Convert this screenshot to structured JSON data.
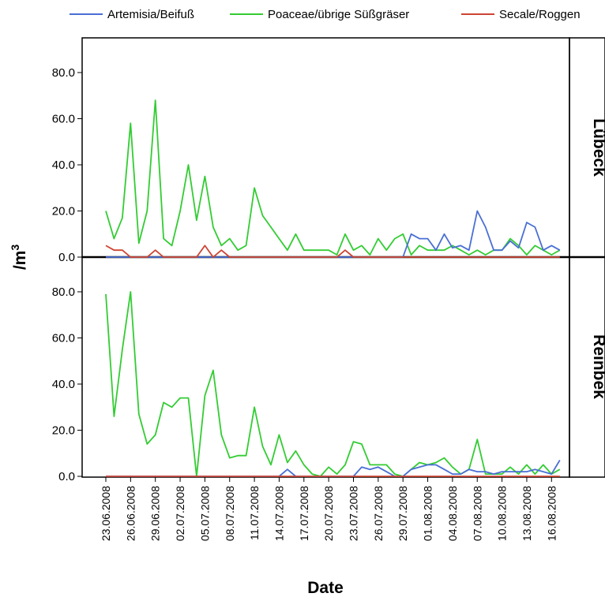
{
  "chart_data": {
    "type": "line",
    "xlabel": "Date",
    "ylabel_main": "/m",
    "ylabel_sup": "3",
    "ylim": [
      0,
      92
    ],
    "yticks": [
      "0.0",
      "20.0",
      "40.0",
      "60.0",
      "80.0"
    ],
    "ytick_values": [
      0,
      20,
      40,
      60,
      80
    ],
    "x_start": "2008-06-23",
    "x_end": "2008-08-17",
    "x_ticks": [
      "23.06.2008",
      "26.06.2008",
      "29.06.2008",
      "02.07.2008",
      "05.07.2008",
      "08.07.2008",
      "11.07.2008",
      "14.07.2008",
      "17.07.2008",
      "20.07.2008",
      "23.07.2008",
      "26.07.2008",
      "29.07.2008",
      "01.08.2008",
      "04.08.2008",
      "07.08.2008",
      "10.08.2008",
      "13.08.2008",
      "16.08.2008"
    ],
    "legend": [
      {
        "name": "Artemisia/Beifuß",
        "color": "#4a6fd4"
      },
      {
        "name": "Poaceae/übrige Süßgräser",
        "color": "#33cc33"
      },
      {
        "name": "Secale/Roggen",
        "color": "#cc4433"
      }
    ],
    "legend_placement": "top",
    "panels": [
      {
        "label": "Lübeck",
        "series": [
          {
            "name": "Artemisia/Beifuß",
            "color": "#4a6fd4",
            "points": [
              [
                "2008-06-23",
                0
              ],
              [
                "2008-07-29",
                0
              ],
              [
                "2008-07-30",
                10
              ],
              [
                "2008-07-31",
                8
              ],
              [
                "2008-08-01",
                8
              ],
              [
                "2008-08-02",
                3
              ],
              [
                "2008-08-03",
                10
              ],
              [
                "2008-08-04",
                4
              ],
              [
                "2008-08-05",
                5
              ],
              [
                "2008-08-06",
                3
              ],
              [
                "2008-08-07",
                20
              ],
              [
                "2008-08-08",
                13
              ],
              [
                "2008-08-09",
                3
              ],
              [
                "2008-08-10",
                3
              ],
              [
                "2008-08-11",
                7
              ],
              [
                "2008-08-12",
                4
              ],
              [
                "2008-08-13",
                15
              ],
              [
                "2008-08-14",
                13
              ],
              [
                "2008-08-15",
                3
              ],
              [
                "2008-08-16",
                5
              ],
              [
                "2008-08-17",
                3
              ]
            ]
          },
          {
            "name": "Poaceae/übrige Süßgräser",
            "color": "#33cc33",
            "points": [
              [
                "2008-06-23",
                20
              ],
              [
                "2008-06-24",
                8
              ],
              [
                "2008-06-25",
                17
              ],
              [
                "2008-06-26",
                58
              ],
              [
                "2008-06-27",
                6
              ],
              [
                "2008-06-28",
                20
              ],
              [
                "2008-06-29",
                68
              ],
              [
                "2008-06-30",
                8
              ],
              [
                "2008-07-01",
                5
              ],
              [
                "2008-07-02",
                20
              ],
              [
                "2008-07-03",
                40
              ],
              [
                "2008-07-04",
                16
              ],
              [
                "2008-07-05",
                35
              ],
              [
                "2008-07-06",
                13
              ],
              [
                "2008-07-07",
                5
              ],
              [
                "2008-07-08",
                8
              ],
              [
                "2008-07-09",
                3
              ],
              [
                "2008-07-10",
                5
              ],
              [
                "2008-07-11",
                30
              ],
              [
                "2008-07-12",
                18
              ],
              [
                "2008-07-13",
                13
              ],
              [
                "2008-07-14",
                8
              ],
              [
                "2008-07-15",
                3
              ],
              [
                "2008-07-16",
                10
              ],
              [
                "2008-07-17",
                3
              ],
              [
                "2008-07-18",
                3
              ],
              [
                "2008-07-19",
                3
              ],
              [
                "2008-07-20",
                3
              ],
              [
                "2008-07-21",
                1
              ],
              [
                "2008-07-22",
                10
              ],
              [
                "2008-07-23",
                3
              ],
              [
                "2008-07-24",
                5
              ],
              [
                "2008-07-25",
                1
              ],
              [
                "2008-07-26",
                8
              ],
              [
                "2008-07-27",
                3
              ],
              [
                "2008-07-28",
                8
              ],
              [
                "2008-07-29",
                10
              ],
              [
                "2008-07-30",
                1
              ],
              [
                "2008-07-31",
                5
              ],
              [
                "2008-08-01",
                3
              ],
              [
                "2008-08-02",
                3
              ],
              [
                "2008-08-03",
                3
              ],
              [
                "2008-08-04",
                5
              ],
              [
                "2008-08-05",
                3
              ],
              [
                "2008-08-06",
                1
              ],
              [
                "2008-08-07",
                3
              ],
              [
                "2008-08-08",
                1
              ],
              [
                "2008-08-09",
                3
              ],
              [
                "2008-08-10",
                3
              ],
              [
                "2008-08-11",
                8
              ],
              [
                "2008-08-12",
                5
              ],
              [
                "2008-08-13",
                1
              ],
              [
                "2008-08-14",
                5
              ],
              [
                "2008-08-15",
                3
              ],
              [
                "2008-08-16",
                1
              ],
              [
                "2008-08-17",
                3
              ]
            ]
          },
          {
            "name": "Secale/Roggen",
            "color": "#cc4433",
            "points": [
              [
                "2008-06-23",
                5
              ],
              [
                "2008-06-24",
                3
              ],
              [
                "2008-06-25",
                3
              ],
              [
                "2008-06-26",
                0
              ],
              [
                "2008-06-27",
                0
              ],
              [
                "2008-06-28",
                0
              ],
              [
                "2008-06-29",
                3
              ],
              [
                "2008-06-30",
                0
              ],
              [
                "2008-07-01",
                0
              ],
              [
                "2008-07-02",
                0
              ],
              [
                "2008-07-03",
                0
              ],
              [
                "2008-07-04",
                0
              ],
              [
                "2008-07-05",
                5
              ],
              [
                "2008-07-06",
                0
              ],
              [
                "2008-07-07",
                3
              ],
              [
                "2008-07-08",
                0
              ],
              [
                "2008-07-09",
                0
              ],
              [
                "2008-07-21",
                0
              ],
              [
                "2008-07-22",
                3
              ],
              [
                "2008-07-23",
                0
              ],
              [
                "2008-08-17",
                0
              ]
            ]
          }
        ]
      },
      {
        "label": "Reinbek",
        "series": [
          {
            "name": "Artemisia/Beifuß",
            "color": "#4a6fd4",
            "points": [
              [
                "2008-06-23",
                0
              ],
              [
                "2008-07-13",
                0
              ],
              [
                "2008-07-14",
                0
              ],
              [
                "2008-07-15",
                3
              ],
              [
                "2008-07-16",
                0
              ],
              [
                "2008-07-23",
                0
              ],
              [
                "2008-07-24",
                4
              ],
              [
                "2008-07-25",
                3
              ],
              [
                "2008-07-26",
                4
              ],
              [
                "2008-07-27",
                2
              ],
              [
                "2008-07-28",
                0
              ],
              [
                "2008-07-29",
                0
              ],
              [
                "2008-07-30",
                3
              ],
              [
                "2008-07-31",
                4
              ],
              [
                "2008-08-01",
                5
              ],
              [
                "2008-08-02",
                5
              ],
              [
                "2008-08-03",
                3
              ],
              [
                "2008-08-04",
                1
              ],
              [
                "2008-08-05",
                1
              ],
              [
                "2008-08-06",
                3
              ],
              [
                "2008-08-07",
                2
              ],
              [
                "2008-08-08",
                2
              ],
              [
                "2008-08-09",
                1
              ],
              [
                "2008-08-10",
                2
              ],
              [
                "2008-08-11",
                2
              ],
              [
                "2008-08-12",
                2
              ],
              [
                "2008-08-13",
                2
              ],
              [
                "2008-08-14",
                3
              ],
              [
                "2008-08-15",
                2
              ],
              [
                "2008-08-16",
                1
              ],
              [
                "2008-08-17",
                7
              ]
            ]
          },
          {
            "name": "Poaceae/übrige Süßgräser",
            "color": "#33cc33",
            "points": [
              [
                "2008-06-23",
                79
              ],
              [
                "2008-06-24",
                26
              ],
              [
                "2008-06-25",
                55
              ],
              [
                "2008-06-26",
                80
              ],
              [
                "2008-06-27",
                27
              ],
              [
                "2008-06-28",
                14
              ],
              [
                "2008-06-29",
                18
              ],
              [
                "2008-06-30",
                32
              ],
              [
                "2008-07-01",
                30
              ],
              [
                "2008-07-02",
                34
              ],
              [
                "2008-07-03",
                34
              ],
              [
                "2008-07-04",
                0
              ],
              [
                "2008-07-05",
                35
              ],
              [
                "2008-07-06",
                46
              ],
              [
                "2008-07-07",
                18
              ],
              [
                "2008-07-08",
                8
              ],
              [
                "2008-07-09",
                9
              ],
              [
                "2008-07-10",
                9
              ],
              [
                "2008-07-11",
                30
              ],
              [
                "2008-07-12",
                13
              ],
              [
                "2008-07-13",
                5
              ],
              [
                "2008-07-14",
                18
              ],
              [
                "2008-07-15",
                6
              ],
              [
                "2008-07-16",
                11
              ],
              [
                "2008-07-17",
                5
              ],
              [
                "2008-07-18",
                1
              ],
              [
                "2008-07-19",
                0
              ],
              [
                "2008-07-20",
                4
              ],
              [
                "2008-07-21",
                1
              ],
              [
                "2008-07-22",
                5
              ],
              [
                "2008-07-23",
                15
              ],
              [
                "2008-07-24",
                14
              ],
              [
                "2008-07-25",
                5
              ],
              [
                "2008-07-26",
                5
              ],
              [
                "2008-07-27",
                5
              ],
              [
                "2008-07-28",
                1
              ],
              [
                "2008-07-29",
                0
              ],
              [
                "2008-07-30",
                3
              ],
              [
                "2008-07-31",
                6
              ],
              [
                "2008-08-01",
                5
              ],
              [
                "2008-08-02",
                6
              ],
              [
                "2008-08-03",
                8
              ],
              [
                "2008-08-04",
                4
              ],
              [
                "2008-08-05",
                1
              ],
              [
                "2008-08-06",
                3
              ],
              [
                "2008-08-07",
                16
              ],
              [
                "2008-08-08",
                1
              ],
              [
                "2008-08-09",
                1
              ],
              [
                "2008-08-10",
                1
              ],
              [
                "2008-08-11",
                4
              ],
              [
                "2008-08-12",
                1
              ],
              [
                "2008-08-13",
                5
              ],
              [
                "2008-08-14",
                1
              ],
              [
                "2008-08-15",
                5
              ],
              [
                "2008-08-16",
                1
              ],
              [
                "2008-08-17",
                3
              ]
            ]
          },
          {
            "name": "Secale/Roggen",
            "color": "#cc4433",
            "points": [
              [
                "2008-06-23",
                0
              ],
              [
                "2008-08-17",
                0
              ]
            ]
          }
        ]
      }
    ]
  }
}
